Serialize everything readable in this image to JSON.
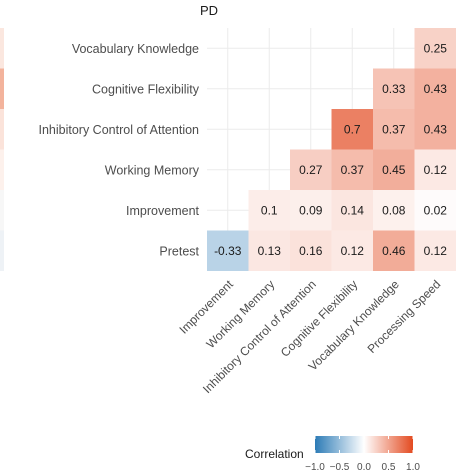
{
  "chart_data": {
    "type": "heatmap",
    "title": "PD",
    "rows": [
      "Vocabulary Knowledge",
      "Cognitive Flexibility",
      "Inhibitory Control of Attention",
      "Working Memory",
      "Improvement",
      "Pretest"
    ],
    "columns": [
      "Improvement",
      "Working Memory",
      "Inhibitory Control of Attention",
      "Cognitive Flexibility",
      "Vocabulary Knowledge",
      "Processing Speed"
    ],
    "cells": [
      {
        "row": "Vocabulary Knowledge",
        "col": "Processing Speed",
        "value": 0.25,
        "label": "0.25"
      },
      {
        "row": "Cognitive Flexibility",
        "col": "Vocabulary Knowledge",
        "value": 0.33,
        "label": "0.33"
      },
      {
        "row": "Cognitive Flexibility",
        "col": "Processing Speed",
        "value": 0.43,
        "label": "0.43"
      },
      {
        "row": "Inhibitory Control of Attention",
        "col": "Cognitive Flexibility",
        "value": 0.7,
        "label": "0.7"
      },
      {
        "row": "Inhibitory Control of Attention",
        "col": "Vocabulary Knowledge",
        "value": 0.37,
        "label": "0.37"
      },
      {
        "row": "Inhibitory Control of Attention",
        "col": "Processing Speed",
        "value": 0.43,
        "label": "0.43"
      },
      {
        "row": "Working Memory",
        "col": "Inhibitory Control of Attention",
        "value": 0.27,
        "label": "0.27"
      },
      {
        "row": "Working Memory",
        "col": "Cognitive Flexibility",
        "value": 0.37,
        "label": "0.37"
      },
      {
        "row": "Working Memory",
        "col": "Vocabulary Knowledge",
        "value": 0.45,
        "label": "0.45"
      },
      {
        "row": "Working Memory",
        "col": "Processing Speed",
        "value": 0.12,
        "label": "0.12"
      },
      {
        "row": "Improvement",
        "col": "Working Memory",
        "value": 0.1,
        "label": "0.1"
      },
      {
        "row": "Improvement",
        "col": "Inhibitory Control of Attention",
        "value": 0.09,
        "label": "0.09"
      },
      {
        "row": "Improvement",
        "col": "Cognitive Flexibility",
        "value": 0.14,
        "label": "0.14"
      },
      {
        "row": "Improvement",
        "col": "Vocabulary Knowledge",
        "value": 0.08,
        "label": "0.08"
      },
      {
        "row": "Improvement",
        "col": "Processing Speed",
        "value": 0.02,
        "label": "0.02"
      },
      {
        "row": "Pretest",
        "col": "Improvement",
        "value": -0.33,
        "label": "-0.33"
      },
      {
        "row": "Pretest",
        "col": "Working Memory",
        "value": 0.13,
        "label": "0.13"
      },
      {
        "row": "Pretest",
        "col": "Inhibitory Control of Attention",
        "value": 0.16,
        "label": "0.16"
      },
      {
        "row": "Pretest",
        "col": "Cognitive Flexibility",
        "value": 0.12,
        "label": "0.12"
      },
      {
        "row": "Pretest",
        "col": "Vocabulary Knowledge",
        "value": 0.46,
        "label": "0.46"
      },
      {
        "row": "Pretest",
        "col": "Processing Speed",
        "value": 0.12,
        "label": "0.12"
      }
    ],
    "legend": {
      "title": "Correlation",
      "range": [
        -1.0,
        1.0
      ],
      "ticks": [
        {
          "value": -1.0,
          "label": "−1.0"
        },
        {
          "value": -0.5,
          "label": "−0.5"
        },
        {
          "value": 0.0,
          "label": "0.0"
        },
        {
          "value": 0.5,
          "label": "0.5"
        },
        {
          "value": 1.0,
          "label": "1.0"
        }
      ],
      "colors": {
        "low": "#2c7bb6",
        "mid": "#ffffff",
        "high": "#e34a20"
      }
    },
    "grid": true
  }
}
